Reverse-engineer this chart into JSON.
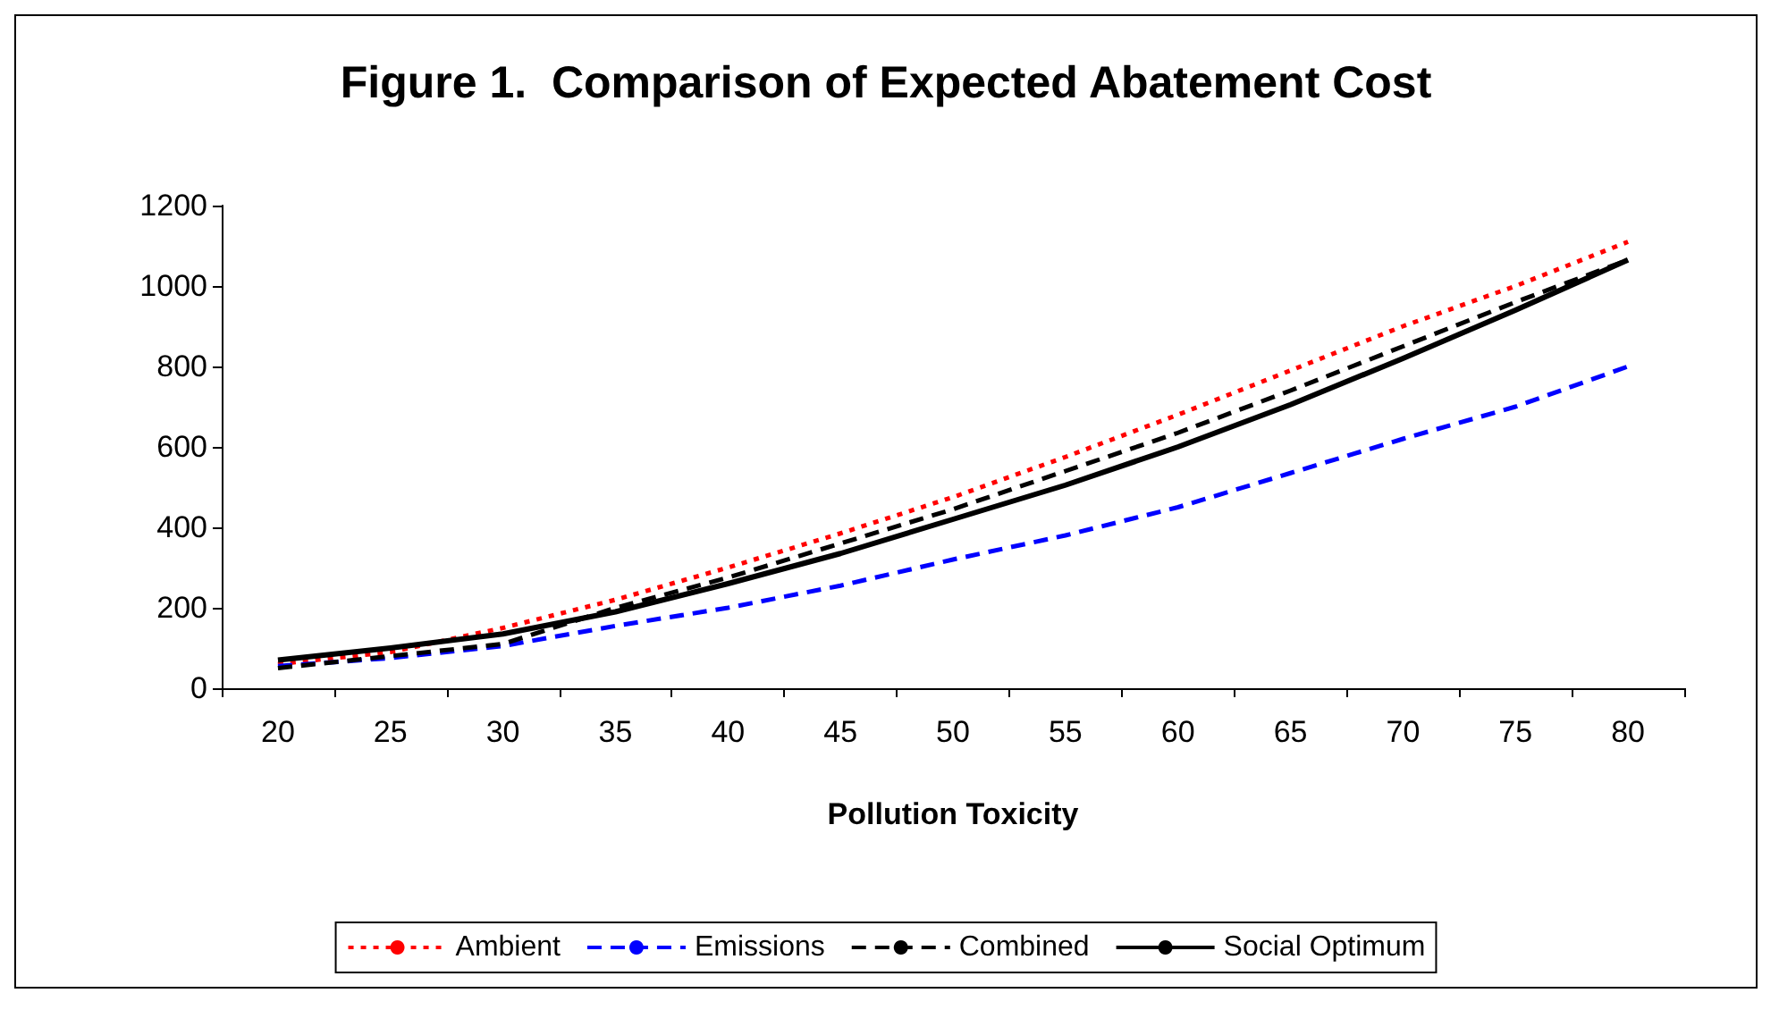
{
  "chart_data": {
    "type": "line",
    "title": "Figure 1.  Comparison of Expected Abatement Cost",
    "xlabel": "Pollution Toxicity",
    "categories": [
      "20",
      "25",
      "30",
      "35",
      "40",
      "45",
      "50",
      "55",
      "60",
      "65",
      "70",
      "75",
      "80"
    ],
    "series": [
      {
        "name": "Ambient",
        "color": "#ff0000",
        "line_style": "dotted",
        "values": [
          60,
          90,
          150,
          220,
          300,
          385,
          475,
          575,
          680,
          790,
          900,
          1000,
          1110
        ]
      },
      {
        "name": "Emissions",
        "color": "#0000ff",
        "line_style": "dashed",
        "values": [
          55,
          75,
          105,
          155,
          200,
          255,
          320,
          380,
          450,
          535,
          620,
          700,
          800
        ]
      },
      {
        "name": "Combined",
        "color": "#000000",
        "line_style": "dashed",
        "values": [
          50,
          80,
          110,
          200,
          275,
          360,
          445,
          540,
          635,
          740,
          850,
          960,
          1065
        ]
      },
      {
        "name": "Social Optimum",
        "color": "#000000",
        "line_style": "solid",
        "values": [
          70,
          100,
          135,
          190,
          260,
          335,
          420,
          505,
          600,
          705,
          820,
          940,
          1065
        ]
      }
    ],
    "ylim": [
      0,
      1200
    ],
    "yticks": [
      0,
      200,
      400,
      600,
      800,
      1000,
      1200
    ],
    "grid": false,
    "legend": "bottom",
    "marker": "none"
  }
}
